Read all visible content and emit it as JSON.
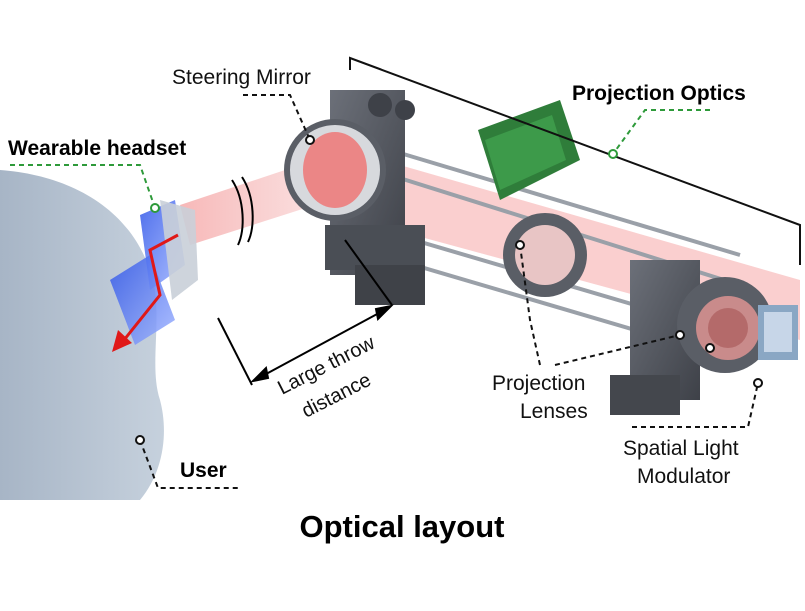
{
  "labels": {
    "steering_mirror": "Steering Mirror",
    "projection_optics": "Projection Optics",
    "wearable_headset": "Wearable headset",
    "large_throw_line1": "Large throw",
    "large_throw_line2": "distance",
    "projection_lenses_line1": "Projection",
    "projection_lenses_line2": "Lenses",
    "slm_line1": "Spatial Light",
    "slm_line2": "Modulator",
    "user": "User",
    "figure_caption": "Optical layout"
  },
  "colors": {
    "beam": "#f06464",
    "callout_green": "#2e9a3a",
    "callout_black": "#111111",
    "mount_gray": "#5a5e66",
    "pcb_green": "#2f7d3a",
    "user_blue": "#b7c4d3",
    "headset_blue": "#3f63e0",
    "arrow_red": "#e01818"
  }
}
